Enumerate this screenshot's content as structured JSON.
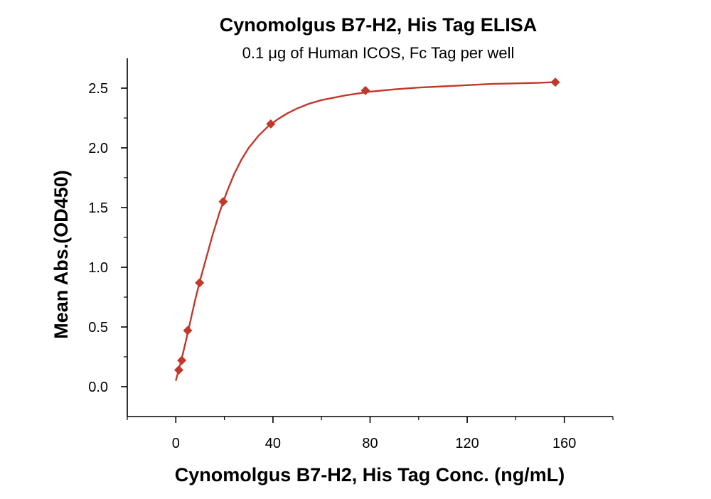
{
  "chart_data": {
    "type": "scatter",
    "title": "Cynomolgus B7-H2, His Tag ELISA",
    "subtitle": "0.1 μg of Human ICOS, Fc Tag per well",
    "xlabel": "Cynomolgus B7-H2, His Tag Conc. (ng/mL)",
    "ylabel": "Mean Abs.(OD450)",
    "xlim": [
      -20,
      180
    ],
    "ylim": [
      -0.25,
      2.75
    ],
    "x_ticks": [
      0,
      40,
      80,
      120,
      160
    ],
    "x_tick_labels": [
      "0",
      "40",
      "80",
      "120",
      "160"
    ],
    "y_ticks": [
      0.0,
      0.5,
      1.0,
      1.5,
      2.0,
      2.5
    ],
    "y_tick_labels": [
      "0.0",
      "0.5",
      "1.0",
      "1.5",
      "2.0",
      "2.5"
    ],
    "grid": false,
    "legend": "none",
    "series": [
      {
        "marker": "diamond",
        "color": "#c0392b",
        "x": [
          1.22,
          2.44,
          4.88,
          9.77,
          19.5,
          39.1,
          78.1,
          156.3
        ],
        "y": [
          0.14,
          0.22,
          0.47,
          0.87,
          1.55,
          2.2,
          2.48,
          2.55
        ]
      }
    ],
    "fit_curve": {
      "color": "#c0392b",
      "x": [
        0,
        2,
        4,
        6,
        8,
        10,
        12,
        15,
        18,
        21,
        24,
        27,
        30,
        34,
        38,
        42,
        46,
        50,
        55,
        60,
        65,
        70,
        75,
        80,
        90,
        100,
        110,
        120,
        130,
        140,
        150,
        156
      ],
      "y": [
        0.05,
        0.2,
        0.37,
        0.55,
        0.73,
        0.89,
        1.04,
        1.26,
        1.46,
        1.63,
        1.78,
        1.9,
        2.0,
        2.1,
        2.18,
        2.24,
        2.29,
        2.33,
        2.37,
        2.4,
        2.42,
        2.44,
        2.455,
        2.47,
        2.49,
        2.505,
        2.515,
        2.525,
        2.535,
        2.54,
        2.545,
        2.55
      ]
    }
  }
}
